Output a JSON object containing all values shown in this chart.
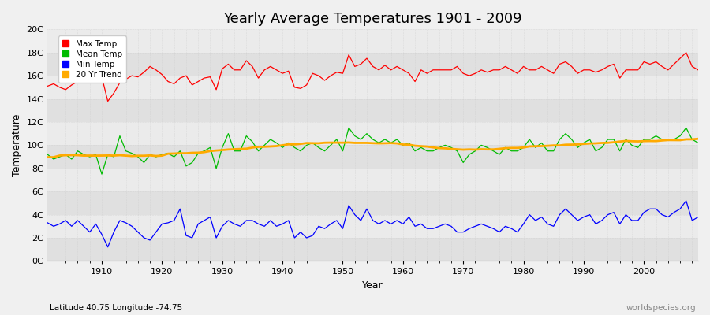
{
  "title": "Yearly Average Temperatures 1901 - 2009",
  "xlabel": "Year",
  "ylabel": "Temperature",
  "subtitle": "Latitude 40.75 Longitude -74.75",
  "watermark": "worldspecies.org",
  "years": [
    1901,
    1902,
    1903,
    1904,
    1905,
    1906,
    1907,
    1908,
    1909,
    1910,
    1911,
    1912,
    1913,
    1914,
    1915,
    1916,
    1917,
    1918,
    1919,
    1920,
    1921,
    1922,
    1923,
    1924,
    1925,
    1926,
    1927,
    1928,
    1929,
    1930,
    1931,
    1932,
    1933,
    1934,
    1935,
    1936,
    1937,
    1938,
    1939,
    1940,
    1941,
    1942,
    1943,
    1944,
    1945,
    1946,
    1947,
    1948,
    1949,
    1950,
    1951,
    1952,
    1953,
    1954,
    1955,
    1956,
    1957,
    1958,
    1959,
    1960,
    1961,
    1962,
    1963,
    1964,
    1965,
    1966,
    1967,
    1968,
    1969,
    1970,
    1971,
    1972,
    1973,
    1974,
    1975,
    1976,
    1977,
    1978,
    1979,
    1980,
    1981,
    1982,
    1983,
    1984,
    1985,
    1986,
    1987,
    1988,
    1989,
    1990,
    1991,
    1992,
    1993,
    1994,
    1995,
    1996,
    1997,
    1998,
    1999,
    2000,
    2001,
    2002,
    2003,
    2004,
    2005,
    2006,
    2007,
    2008,
    2009
  ],
  "max_temp": [
    15.1,
    15.3,
    15.0,
    14.8,
    15.2,
    15.5,
    15.4,
    15.6,
    15.8,
    15.9,
    13.8,
    14.5,
    15.4,
    15.7,
    16.0,
    15.9,
    16.3,
    16.8,
    16.5,
    16.1,
    15.5,
    15.3,
    15.8,
    16.0,
    15.2,
    15.5,
    15.8,
    15.9,
    14.8,
    16.6,
    17.0,
    16.5,
    16.5,
    17.3,
    16.8,
    15.8,
    16.5,
    16.8,
    16.5,
    16.2,
    16.4,
    15.0,
    14.9,
    15.2,
    16.2,
    16.0,
    15.6,
    16.0,
    16.3,
    16.2,
    17.8,
    16.8,
    17.0,
    17.5,
    16.8,
    16.5,
    16.9,
    16.5,
    16.8,
    16.5,
    16.2,
    15.5,
    16.5,
    16.2,
    16.5,
    16.5,
    16.5,
    16.5,
    16.8,
    16.2,
    16.0,
    16.2,
    16.5,
    16.3,
    16.5,
    16.5,
    16.8,
    16.5,
    16.2,
    16.8,
    16.5,
    16.5,
    16.8,
    16.5,
    16.2,
    17.0,
    17.2,
    16.8,
    16.2,
    16.5,
    16.5,
    16.3,
    16.5,
    16.8,
    17.0,
    15.8,
    16.5,
    16.5,
    16.5,
    17.2,
    17.0,
    17.2,
    16.8,
    16.5,
    17.0,
    17.5,
    18.0,
    16.8,
    16.5
  ],
  "mean_temp": [
    9.2,
    8.8,
    9.0,
    9.2,
    8.8,
    9.5,
    9.2,
    9.0,
    9.2,
    7.5,
    9.2,
    9.0,
    10.8,
    9.5,
    9.3,
    9.0,
    8.5,
    9.2,
    9.0,
    9.2,
    9.3,
    9.0,
    9.5,
    8.2,
    8.5,
    9.3,
    9.5,
    9.8,
    8.0,
    9.8,
    11.0,
    9.5,
    9.5,
    10.8,
    10.3,
    9.5,
    10.0,
    10.5,
    10.2,
    9.8,
    10.2,
    9.8,
    9.5,
    10.0,
    10.2,
    9.8,
    9.5,
    10.0,
    10.5,
    9.5,
    11.5,
    10.8,
    10.5,
    11.0,
    10.5,
    10.2,
    10.5,
    10.2,
    10.5,
    10.0,
    10.2,
    9.5,
    9.8,
    9.5,
    9.5,
    9.8,
    10.0,
    9.8,
    9.5,
    8.5,
    9.2,
    9.5,
    10.0,
    9.8,
    9.5,
    9.2,
    9.8,
    9.5,
    9.5,
    9.8,
    10.5,
    9.8,
    10.2,
    9.5,
    9.5,
    10.5,
    11.0,
    10.5,
    9.8,
    10.2,
    10.5,
    9.5,
    9.8,
    10.5,
    10.5,
    9.5,
    10.5,
    10.0,
    9.8,
    10.5,
    10.5,
    10.8,
    10.5,
    10.5,
    10.5,
    10.8,
    11.5,
    10.5,
    10.2
  ],
  "min_temp": [
    3.3,
    3.0,
    3.2,
    3.5,
    3.0,
    3.5,
    3.0,
    2.5,
    3.2,
    2.3,
    1.2,
    2.5,
    3.5,
    3.3,
    3.0,
    2.5,
    2.0,
    1.8,
    2.5,
    3.2,
    3.3,
    3.5,
    4.5,
    2.2,
    2.0,
    3.2,
    3.5,
    3.8,
    2.0,
    3.0,
    3.5,
    3.2,
    3.0,
    3.5,
    3.5,
    3.2,
    3.0,
    3.5,
    3.0,
    3.2,
    3.5,
    2.0,
    2.5,
    2.0,
    2.2,
    3.0,
    2.8,
    3.2,
    3.5,
    2.8,
    4.8,
    4.0,
    3.5,
    4.5,
    3.5,
    3.2,
    3.5,
    3.2,
    3.5,
    3.2,
    3.8,
    3.0,
    3.2,
    2.8,
    2.8,
    3.0,
    3.2,
    3.0,
    2.5,
    2.5,
    2.8,
    3.0,
    3.2,
    3.0,
    2.8,
    2.5,
    3.0,
    2.8,
    2.5,
    3.2,
    4.0,
    3.5,
    3.8,
    3.2,
    3.0,
    4.0,
    4.5,
    4.0,
    3.5,
    3.8,
    4.0,
    3.2,
    3.5,
    4.0,
    4.2,
    3.2,
    4.0,
    3.5,
    3.5,
    4.2,
    4.5,
    4.5,
    4.0,
    3.8,
    4.2,
    4.5,
    5.2,
    3.5,
    3.8
  ],
  "bg_color": "#f0f0f0",
  "plot_bg_color_light": "#ebebeb",
  "plot_bg_color_dark": "#e0e0e0",
  "max_color": "#ff0000",
  "mean_color": "#00bb00",
  "min_color": "#0000ff",
  "trend_color": "#ffaa00",
  "ylim": [
    0,
    20
  ],
  "yticks": [
    0,
    2,
    4,
    6,
    8,
    10,
    12,
    14,
    16,
    18,
    20
  ],
  "ytick_labels": [
    "0C",
    "2C",
    "4C",
    "6C",
    "8C",
    "10C",
    "12C",
    "14C",
    "16C",
    "18C",
    "20C"
  ],
  "legend_items": [
    "Max Temp",
    "Mean Temp",
    "Min Temp",
    "20 Yr Trend"
  ]
}
